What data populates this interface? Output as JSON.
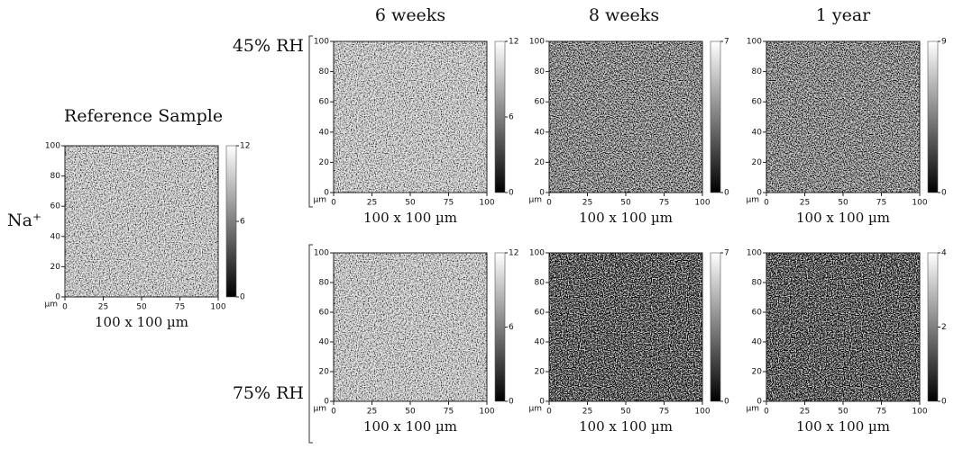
{
  "column_titles": [
    "6 weeks",
    "8 weeks",
    "1 year"
  ],
  "row_titles": [
    "45% RH",
    "75% RH"
  ],
  "ion": "Na⁺",
  "axis_unit": "µm",
  "xticks": [
    0,
    25,
    50,
    75,
    100
  ],
  "yticks": [
    0,
    20,
    40,
    60,
    80,
    100
  ],
  "panels": [
    {
      "title": "Reference Sample",
      "caption": "100 x 100 µm",
      "colorbar_ticks": [
        0,
        6,
        12
      ]
    },
    {
      "caption": "100 x 100 µm",
      "colorbar_ticks": [
        0,
        6,
        12
      ]
    },
    {
      "caption": "100 x 100 µm",
      "colorbar_ticks": [
        0,
        7
      ]
    },
    {
      "caption": "100 x 100 µm",
      "colorbar_ticks": [
        0,
        9
      ]
    },
    {
      "caption": "100 x 100 µm",
      "colorbar_ticks": [
        0,
        6,
        12
      ]
    },
    {
      "caption": "100 x 100 µm",
      "colorbar_ticks": [
        0,
        7
      ]
    },
    {
      "caption": "100 x 100 µm",
      "colorbar_ticks": [
        0,
        2,
        4
      ]
    }
  ]
}
